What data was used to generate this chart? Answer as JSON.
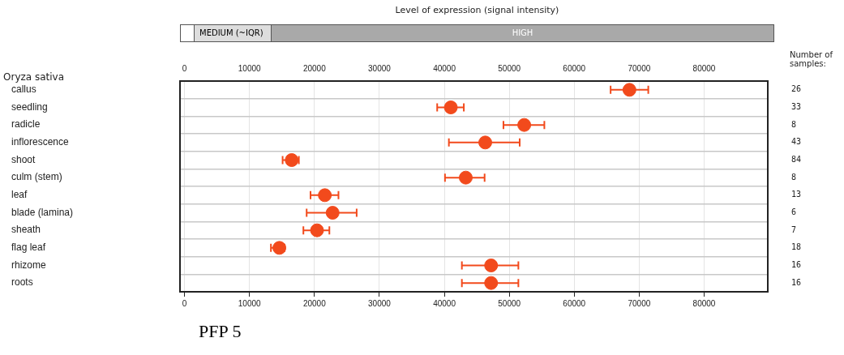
{
  "chart_data": {
    "type": "scatter",
    "orientation": "horizontal",
    "title": "Level of expression (signal intensity)",
    "ylabel": "Oryza sativa",
    "categories": [
      "callus",
      "seedling",
      "radicle",
      "inflorescence",
      "shoot",
      "culm (stem)",
      "leaf",
      "blade (lamina)",
      "sheath",
      "flag leaf",
      "rhizome",
      "roots"
    ],
    "values": [
      68500,
      41000,
      52300,
      46300,
      16500,
      43300,
      21600,
      22800,
      20400,
      14600,
      47200,
      47200
    ],
    "errors": [
      [
        65600,
        71400
      ],
      [
        38900,
        43000
      ],
      [
        49100,
        55400
      ],
      [
        40700,
        51600
      ],
      [
        15100,
        17600
      ],
      [
        40100,
        46200
      ],
      [
        19400,
        23700
      ],
      [
        18800,
        26500
      ],
      [
        18300,
        22300
      ],
      [
        13300,
        15400
      ],
      [
        42700,
        51400
      ],
      [
        42700,
        51400
      ]
    ],
    "color": "#f24a1c",
    "marker": "circle",
    "grid": true,
    "xlim": [
      -700,
      89800
    ],
    "xticks": [
      0,
      10000,
      20000,
      30000,
      40000,
      50000,
      60000,
      70000,
      80000
    ],
    "x2lim": [
      -700,
      89800
    ],
    "x2ticks": [
      0,
      10000,
      20000,
      30000,
      40000,
      50000,
      60000,
      70000,
      80000
    ],
    "annotations": [
      "MEDIUM (~IQR)",
      "HIGH",
      "Number of samples:",
      "PFP 5",
      "26",
      "33",
      "8",
      "43",
      "84",
      "8",
      "13",
      "6",
      "7",
      "18",
      "16",
      "16"
    ]
  }
}
